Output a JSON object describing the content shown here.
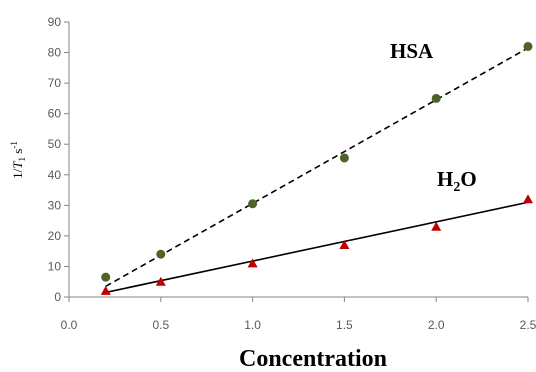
{
  "chart_data": {
    "type": "scatter",
    "xlabel": "Concentration",
    "ylabel": {
      "prefix": "1/",
      "T": "T",
      "sub": "1",
      "unit": " s",
      "sup": "-1"
    },
    "xlim": [
      0.0,
      2.5
    ],
    "ylim": [
      0,
      90
    ],
    "x_ticks": [
      "0.0",
      "0.5",
      "1.0",
      "1.5",
      "2.0",
      "2.5"
    ],
    "y_ticks": [
      "0",
      "10",
      "20",
      "30",
      "40",
      "50",
      "60",
      "70",
      "80",
      "90"
    ],
    "grid": false,
    "series": [
      {
        "name": "HSA",
        "marker": "circle",
        "color": "#4f6228",
        "line_style": "dashed",
        "x": [
          0.2,
          0.5,
          1.0,
          1.5,
          2.0,
          2.5
        ],
        "y": [
          6.5,
          14,
          30.5,
          45.5,
          65,
          82
        ],
        "fit": {
          "x": [
            0.2,
            2.5
          ],
          "y": [
            3.5,
            81.5
          ]
        }
      },
      {
        "name": "H2O",
        "name_main": "H",
        "name_sub": "2",
        "name_tail": "O",
        "marker": "triangle",
        "color": "#c00000",
        "line_style": "solid",
        "x": [
          0.2,
          0.5,
          1.0,
          1.5,
          2.0,
          2.5
        ],
        "y": [
          2,
          5,
          11,
          17,
          23,
          32
        ],
        "fit": {
          "x": [
            0.2,
            2.5
          ],
          "y": [
            1.5,
            31
          ]
        }
      }
    ]
  }
}
